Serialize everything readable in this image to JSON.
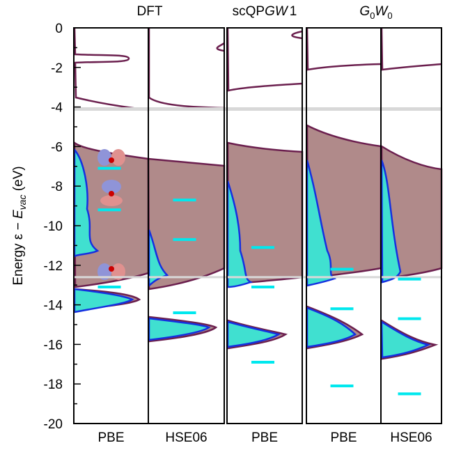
{
  "chart_data": {
    "type": "level-diagram",
    "y_label": {
      "prefix": "Energy ε − ",
      "symbol": "E",
      "sub": "vac",
      "unit": " (eV)"
    },
    "groups": [
      {
        "title": "DFT"
      },
      {
        "title": "scQP",
        "italic": "GW",
        "suffix": "1"
      },
      {
        "symbol1": "G",
        "sub1": "0",
        "symbol2": "W",
        "sub2": "0"
      }
    ],
    "panels": [
      {
        "label": "PBE",
        "levels": [
          -7.1,
          -9.2,
          -13.1
        ]
      },
      {
        "label": "HSE06",
        "levels": [
          -8.7,
          -10.7,
          -14.4
        ]
      },
      {
        "label": "PBE",
        "levels": [
          -11.1,
          -13.1,
          -16.9
        ]
      },
      {
        "label": "PBE",
        "levels": [
          -12.2,
          -14.2,
          -18.1
        ]
      },
      {
        "label": "HSE06",
        "levels": [
          -12.7,
          -14.7,
          -18.5
        ]
      }
    ],
    "level_color": "#00e8ee",
    "reference_lines": [
      -4.1,
      -12.6
    ],
    "ylim": [
      -20,
      0
    ],
    "yticks": [
      -20,
      -18,
      -16,
      -14,
      -12,
      -10,
      -8,
      -6,
      -4,
      -2,
      0
    ],
    "minor_yticks": [
      -19,
      -17,
      -15,
      -13,
      -11,
      -9,
      -7,
      -5,
      -3,
      -1
    ]
  }
}
